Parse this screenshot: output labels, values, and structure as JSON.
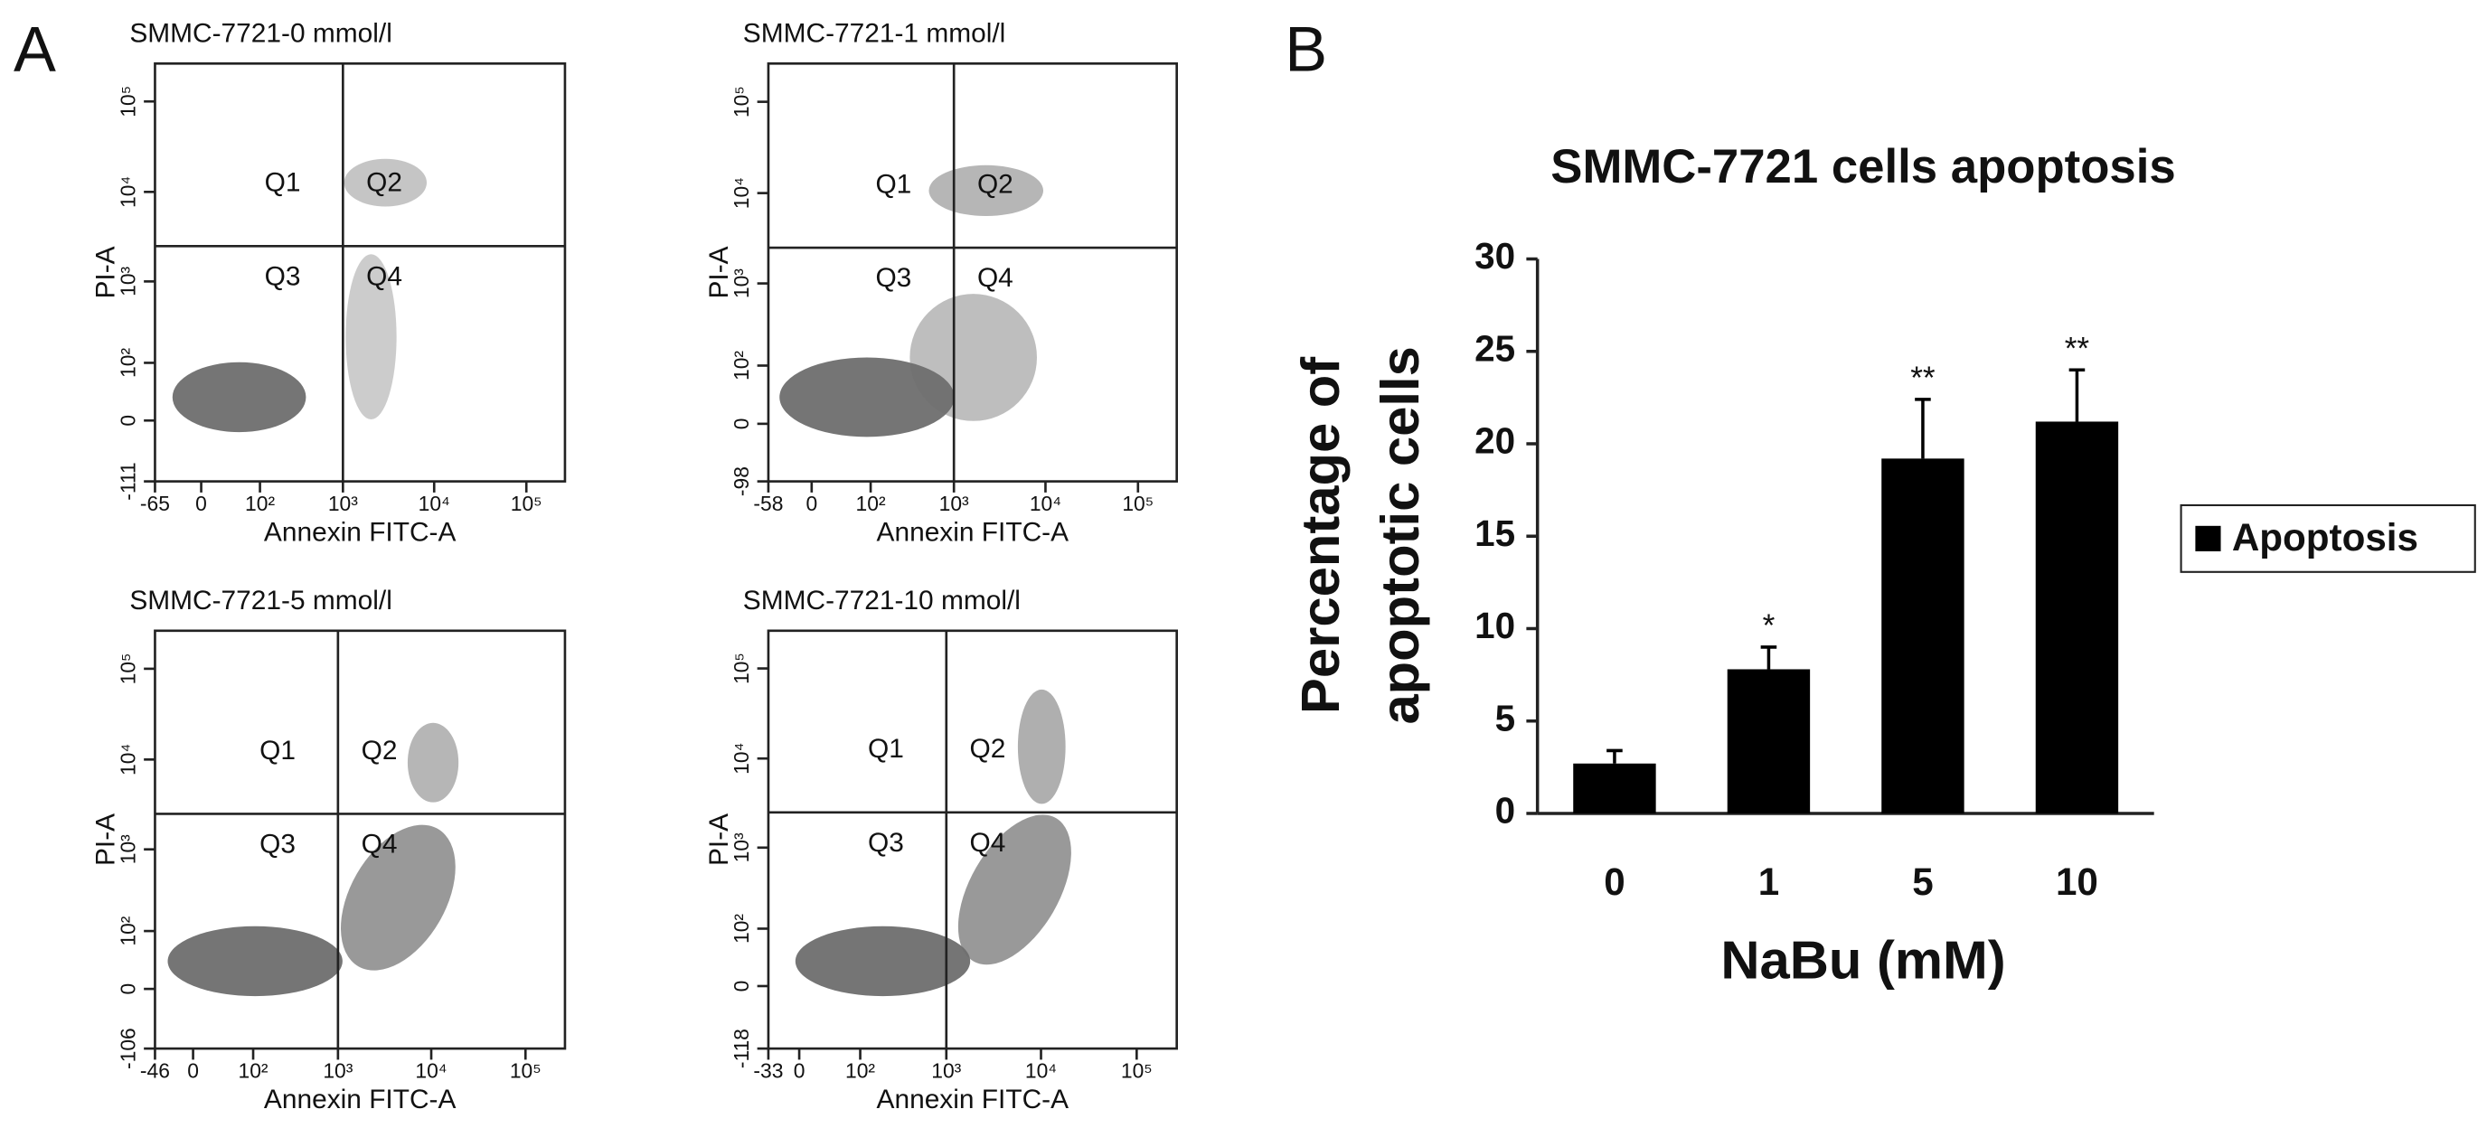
{
  "panel_labels": [
    "A",
    "B"
  ],
  "chart_data": [
    {
      "type": "scatter",
      "title": "SMMC-7721-0 mmol/l",
      "x_label": "Annexin FITC-A",
      "y_label": "PI-A",
      "xscale": "biexponential",
      "yscale": "biexponential",
      "xlim": [
        -65,
        262144
      ],
      "ylim": [
        -111,
        262144
      ],
      "xticks": [
        -65,
        0,
        {
          "value": 100,
          "label": "10²"
        },
        {
          "value": 1000,
          "label": "10³"
        },
        {
          "value": 10000,
          "label": "10⁴"
        },
        {
          "value": 100000,
          "label": "10⁵"
        }
      ],
      "yticks": [
        -111,
        0,
        {
          "value": 100,
          "label": "10²"
        },
        {
          "value": 1000,
          "label": "10³"
        },
        {
          "value": 10000,
          "label": "10⁴"
        },
        {
          "value": 100000,
          "label": "10⁵"
        }
      ],
      "gate_x": 1000,
      "gate_y": 2500,
      "quadrant_labels": [
        "Q1",
        "Q2",
        "Q3",
        "Q4"
      ]
    },
    {
      "type": "scatter",
      "title": "SMMC-7721-1 mmol/l",
      "x_label": "Annexin FITC-A",
      "y_label": "PI-A",
      "xscale": "biexponential",
      "yscale": "biexponential",
      "xlim": [
        -58,
        262144
      ],
      "ylim": [
        -98,
        262144
      ],
      "xticks": [
        -58,
        0,
        {
          "value": 100,
          "label": "10²"
        },
        {
          "value": 1000,
          "label": "10³"
        },
        {
          "value": 10000,
          "label": "10⁴"
        },
        {
          "value": 100000,
          "label": "10⁵"
        }
      ],
      "yticks": [
        -98,
        0,
        {
          "value": 100,
          "label": "10²"
        },
        {
          "value": 1000,
          "label": "10³"
        },
        {
          "value": 10000,
          "label": "10⁴"
        },
        {
          "value": 100000,
          "label": "10⁵"
        }
      ],
      "gate_x": 1000,
      "gate_y": 2500,
      "quadrant_labels": [
        "Q1",
        "Q2",
        "Q3",
        "Q4"
      ]
    },
    {
      "type": "scatter",
      "title": "SMMC-7721-5 mmol/l",
      "x_label": "Annexin FITC-A",
      "y_label": "PI-A",
      "xscale": "biexponential",
      "yscale": "biexponential",
      "xlim": [
        -46,
        262144
      ],
      "ylim": [
        -106,
        262144
      ],
      "xticks": [
        -46,
        0,
        {
          "value": 100,
          "label": "10²"
        },
        {
          "value": 1000,
          "label": "10³"
        },
        {
          "value": 10000,
          "label": "10⁴"
        },
        {
          "value": 100000,
          "label": "10⁵"
        }
      ],
      "yticks": [
        -106,
        0,
        {
          "value": 100,
          "label": "10²"
        },
        {
          "value": 1000,
          "label": "10³"
        },
        {
          "value": 10000,
          "label": "10⁴"
        },
        {
          "value": 100000,
          "label": "10⁵"
        }
      ],
      "gate_x": 1000,
      "gate_y": 2500,
      "quadrant_labels": [
        "Q1",
        "Q2",
        "Q3",
        "Q4"
      ]
    },
    {
      "type": "scatter",
      "title": "SMMC-7721-10 mmol/l",
      "x_label": "Annexin FITC-A",
      "y_label": "PI-A",
      "xscale": "biexponential",
      "yscale": "biexponential",
      "xlim": [
        -33,
        262144
      ],
      "ylim": [
        -118,
        262144
      ],
      "xticks": [
        -33,
        0,
        {
          "value": 100,
          "label": "10²"
        },
        {
          "value": 1000,
          "label": "10³"
        },
        {
          "value": 10000,
          "label": "10⁴"
        },
        {
          "value": 100000,
          "label": "10⁵"
        }
      ],
      "yticks": [
        -118,
        0,
        {
          "value": 100,
          "label": "10²"
        },
        {
          "value": 1000,
          "label": "10³"
        },
        {
          "value": 10000,
          "label": "10⁴"
        },
        {
          "value": 100000,
          "label": "10⁵"
        }
      ],
      "gate_x": 1000,
      "gate_y": 2500,
      "quadrant_labels": [
        "Q1",
        "Q2",
        "Q3",
        "Q4"
      ]
    },
    {
      "type": "bar",
      "title": "SMMC-7721 cells apoptosis",
      "x_label": "NaBu (mM)",
      "y_label": [
        "Percentage of",
        "apoptotic  cells"
      ],
      "categories": [
        "0",
        "1",
        "5",
        "10"
      ],
      "series": [
        {
          "name": "Apoptosis",
          "color": "#000000",
          "values": [
            2.7,
            7.8,
            19.2,
            21.2
          ],
          "errors": [
            0.7,
            1.2,
            3.2,
            2.8
          ]
        }
      ],
      "significance": [
        null,
        "*",
        "**",
        "**"
      ],
      "ylim": [
        0,
        30
      ],
      "yticks": [
        0,
        5,
        10,
        15,
        20,
        25,
        30
      ],
      "legend": "right"
    }
  ]
}
